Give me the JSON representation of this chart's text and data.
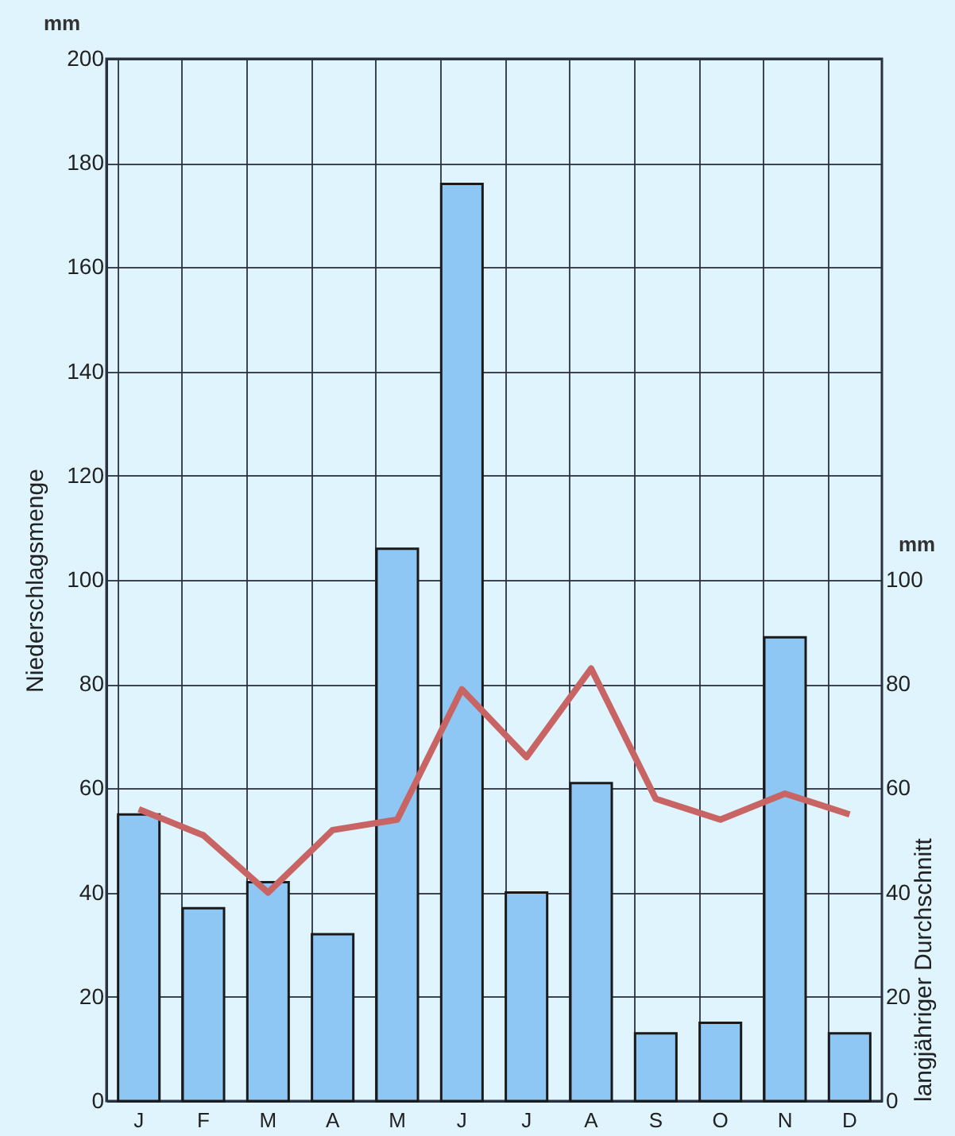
{
  "chart_data": {
    "type": "bar",
    "ylabel": "Niederschlagsmenge",
    "y2label": "langjähriger Durchschnitt",
    "categories": [
      "J",
      "F",
      "M",
      "A",
      "M",
      "J",
      "J",
      "A",
      "S",
      "O",
      "N",
      "D"
    ],
    "series": [
      {
        "type": "bar",
        "color": "#8ec6f4",
        "values": [
          55,
          37,
          42,
          32,
          106,
          176,
          40,
          61,
          13,
          15,
          89,
          13
        ]
      },
      {
        "type": "line",
        "axis": "y2",
        "color": "#c86464",
        "values": [
          56,
          51,
          40,
          52,
          54,
          79,
          66,
          83,
          58,
          54,
          59,
          55
        ]
      }
    ],
    "ylim": [
      0,
      200
    ],
    "yticks": [
      0,
      20,
      40,
      60,
      80,
      100,
      120,
      140,
      160,
      180,
      200
    ],
    "y2lim": [
      0,
      200
    ],
    "y2ticks": [
      0,
      20,
      40,
      60,
      80,
      100
    ],
    "grid": true,
    "annotations": [
      "mm",
      "mm"
    ]
  }
}
